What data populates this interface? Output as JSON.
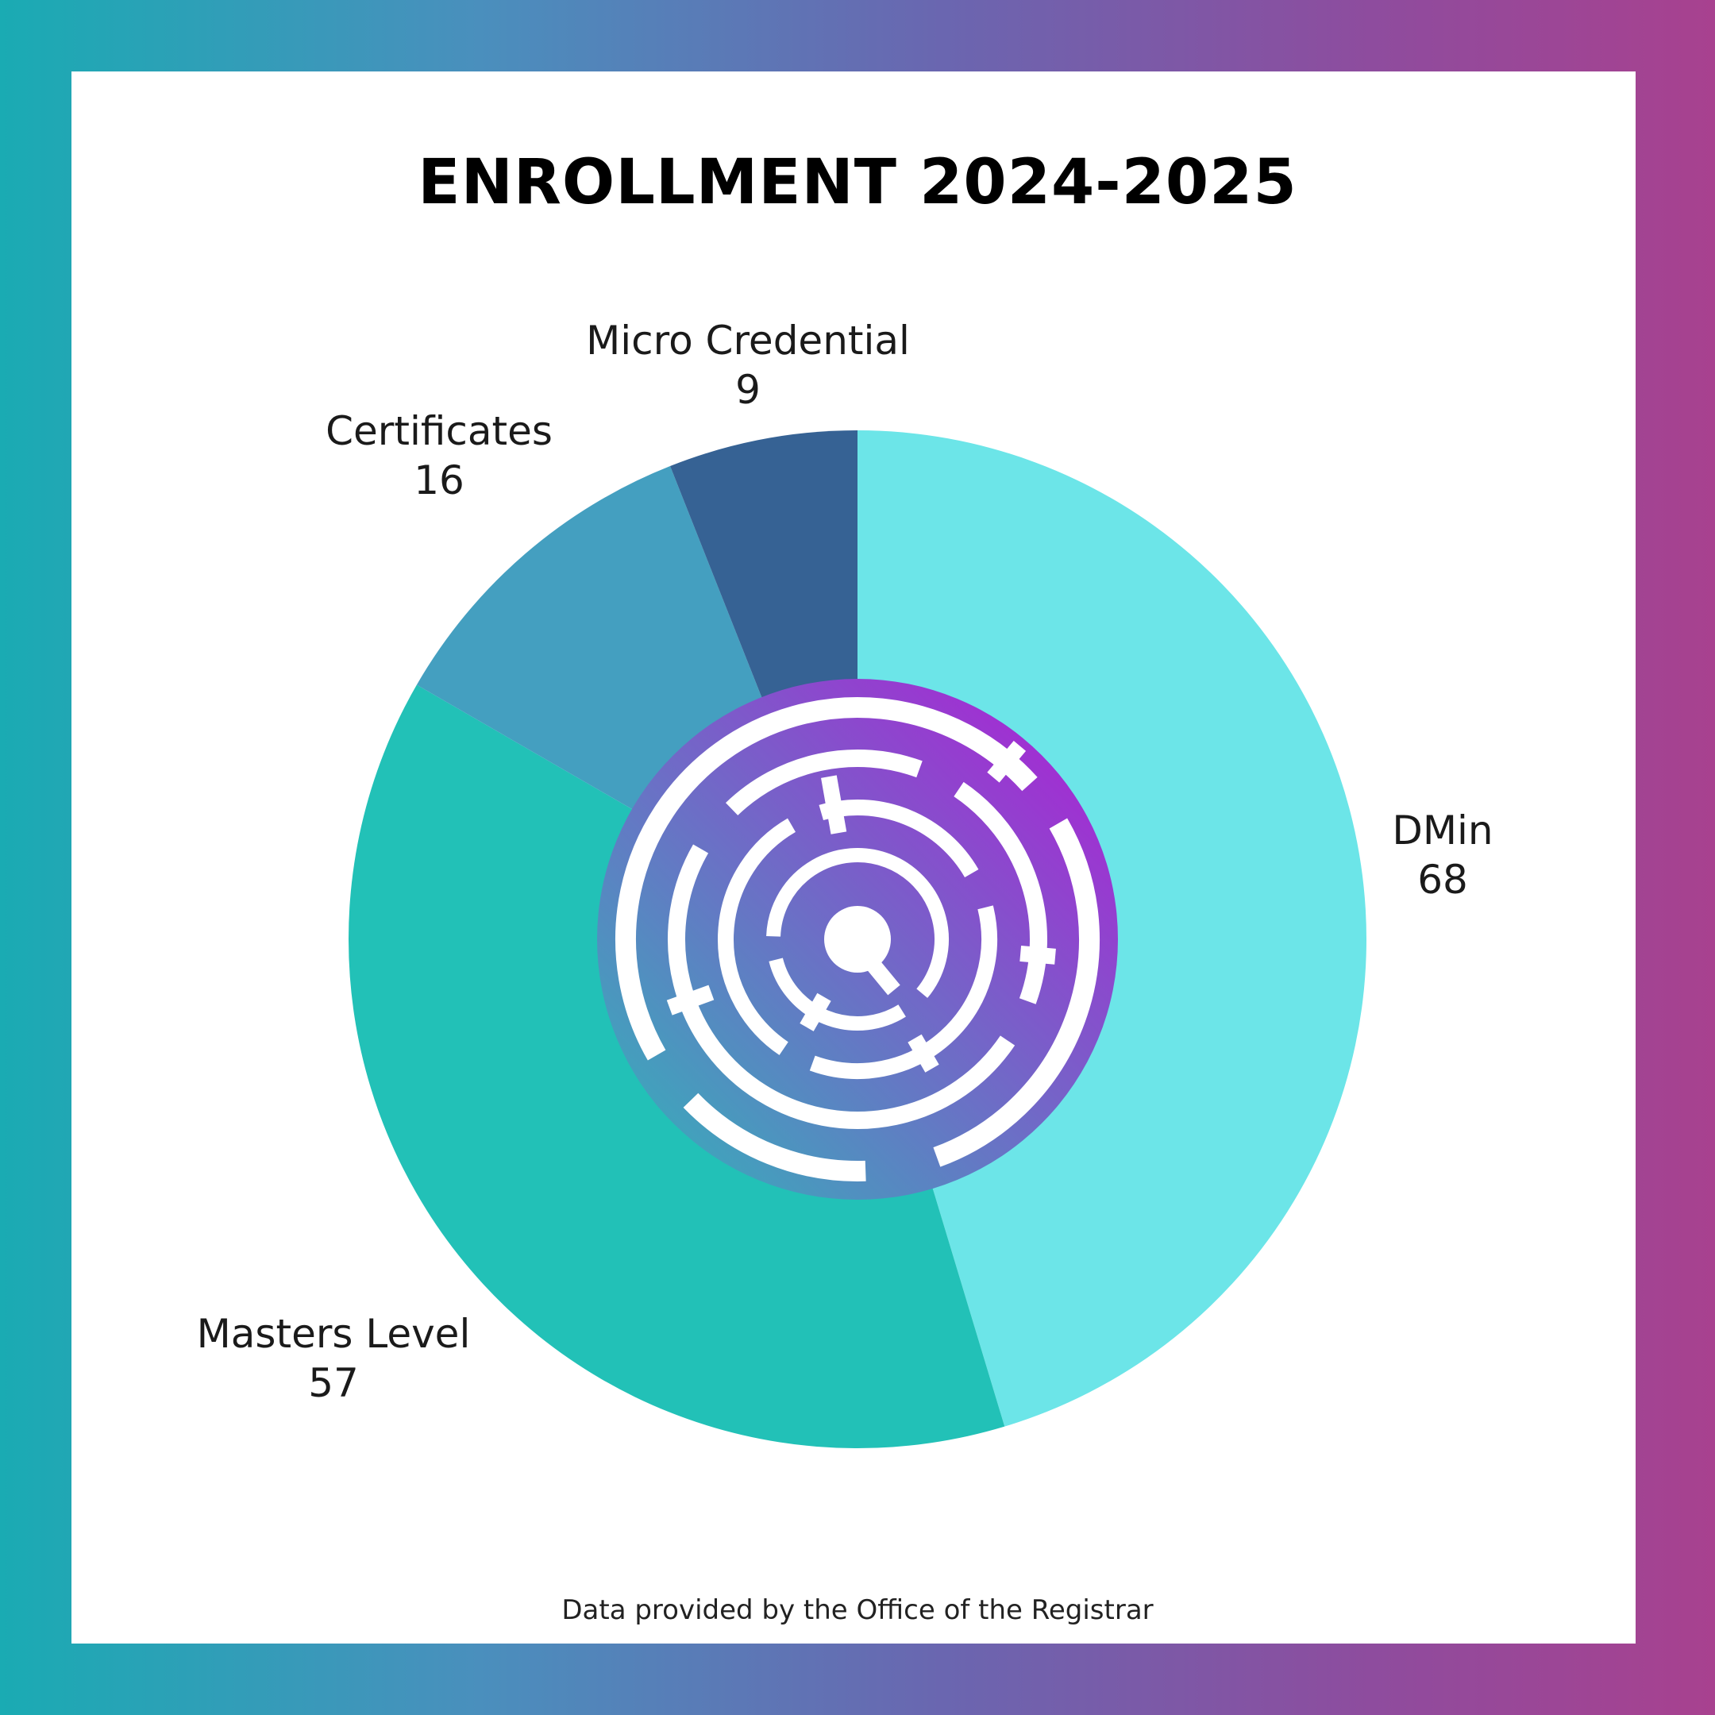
{
  "title": "ENROLLMENT 2024-2025",
  "footnote": "Data provided by the Office of the Registrar",
  "colors": {
    "frame_start": "#1aabb3",
    "frame_end": "#a8418f",
    "logo_start": "#2fb8b8",
    "logo_end": "#b21ad6"
  },
  "logo": {
    "icon": "circular-maze-logo"
  },
  "chart_data": {
    "type": "pie",
    "style": "donut",
    "title": "ENROLLMENT 2024-2025",
    "categories": [
      "DMin",
      "Masters Level",
      "Certificates",
      "Micro Credential"
    ],
    "values": [
      68,
      57,
      16,
      9
    ],
    "colors": [
      "#6ce5e8",
      "#22c1b7",
      "#449fc0",
      "#366294"
    ],
    "value_labels": [
      "68",
      "57",
      "16",
      "9"
    ],
    "legend": "none"
  }
}
